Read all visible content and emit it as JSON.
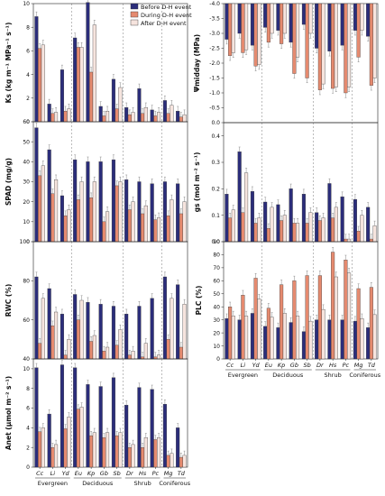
{
  "colors": {
    "before": "#2b2d7a",
    "during": "#e58a6f",
    "after": "#f6e4de",
    "error_bar": "#888888"
  },
  "legend": {
    "before": "Before D-H event",
    "during": "During D-H event",
    "after": "After D-H event"
  },
  "groups": [
    "Evergreen",
    "Deciduous",
    "Shrub",
    "Coniferous"
  ],
  "chart_data": [
    {
      "id": "ks",
      "type": "bar",
      "ylabel": "Ks (kg m⁻¹ MPa⁻¹ s⁻¹)",
      "ylim": [
        0,
        10
      ],
      "yticks": [
        0,
        2,
        4,
        6,
        8,
        10
      ],
      "categories": [
        "Cc",
        "Li",
        "Yd",
        "Eu",
        "Kp",
        "Gb",
        "Sb",
        "Dr",
        "Hs",
        "Pc",
        "Mg",
        "Td"
      ],
      "series": [
        {
          "name": "Before D-H event",
          "values": [
            8.9,
            1.5,
            4.4,
            7.1,
            10.1,
            1.3,
            3.6,
            1.2,
            2.8,
            1.0,
            1.8,
            0.9
          ]
        },
        {
          "name": "During D-H event",
          "values": [
            6.2,
            0.7,
            0.9,
            6.3,
            4.2,
            0.5,
            1.1,
            0.6,
            0.7,
            0.5,
            0.7,
            0.4
          ]
        },
        {
          "name": "After D-H event",
          "values": [
            6.5,
            0.8,
            1.1,
            6.3,
            8.2,
            0.9,
            2.9,
            0.8,
            1.2,
            0.8,
            1.4,
            0.6
          ]
        }
      ]
    },
    {
      "id": "psi",
      "type": "bar",
      "ylabel": "Ψmidday (MPa)",
      "ylim": [
        0,
        -4
      ],
      "yticks": [
        0,
        -0.5,
        -1.0,
        -1.5,
        -2.0,
        -2.5,
        -3.0,
        -3.5,
        -4.0
      ],
      "inverted": true,
      "categories": [
        "Cc",
        "Li",
        "Yd",
        "Eu",
        "Kp",
        "Gb",
        "Sb",
        "Dr",
        "Hs",
        "Pc",
        "Mg",
        "Td"
      ],
      "series": [
        {
          "name": "Before D-H event",
          "values": [
            -1.2,
            -1.0,
            -1.4,
            -0.8,
            -0.9,
            -1.3,
            -0.7,
            -1.5,
            -1.6,
            -1.4,
            -0.9,
            -1.1
          ]
        },
        {
          "name": "During D-H event",
          "values": [
            -1.75,
            -1.65,
            -2.1,
            -1.3,
            -1.35,
            -2.35,
            -2.5,
            -2.9,
            -2.85,
            -3.0,
            -1.8,
            -2.75
          ]
        },
        {
          "name": "After D-H event",
          "values": [
            -1.65,
            -1.55,
            -2.05,
            -1.0,
            -1.0,
            -1.8,
            -1.0,
            -2.7,
            -2.8,
            -2.8,
            -0.9,
            -2.5
          ]
        }
      ]
    },
    {
      "id": "spad",
      "type": "bar",
      "ylabel": "SPAD (mg/g)",
      "ylim": [
        0,
        60
      ],
      "yticks": [
        0,
        10,
        20,
        30,
        40,
        50,
        60
      ],
      "categories": [
        "Cc",
        "Li",
        "Yd",
        "Eu",
        "Kp",
        "Gb",
        "Sb",
        "Dr",
        "Hs",
        "Pc",
        "Mg",
        "Td"
      ],
      "series": [
        {
          "name": "Before D-H event",
          "values": [
            57,
            46,
            23,
            41,
            40,
            40,
            41,
            31,
            30,
            29,
            30,
            29
          ]
        },
        {
          "name": "During D-H event",
          "values": [
            33,
            24,
            13,
            21,
            22,
            10,
            28,
            16,
            14,
            11,
            13,
            14
          ]
        },
        {
          "name": "After D-H event",
          "values": [
            38,
            31,
            16,
            30,
            30,
            15,
            30,
            20,
            18,
            12,
            21,
            20
          ]
        }
      ]
    },
    {
      "id": "gs",
      "type": "bar",
      "ylabel": "gs (mol m⁻² s⁻¹)",
      "ylim": [
        0,
        0.45
      ],
      "yticks": [
        0,
        0.1,
        0.2,
        0.3,
        0.4
      ],
      "categories": [
        "Cc",
        "Li",
        "Yd",
        "Eu",
        "Kp",
        "Gb",
        "Sb",
        "Dr",
        "Hs",
        "Pc",
        "Mg",
        "Td"
      ],
      "series": [
        {
          "name": "Before D-H event",
          "values": [
            0.18,
            0.34,
            0.19,
            0.15,
            0.14,
            0.2,
            0.18,
            0.11,
            0.22,
            0.17,
            0.16,
            0.13
          ]
        },
        {
          "name": "During D-H event",
          "values": [
            0.09,
            0.11,
            0.07,
            0.05,
            0.08,
            0.07,
            0.07,
            0.08,
            0.09,
            0.01,
            0.04,
            0.01
          ]
        },
        {
          "name": "After D-H event",
          "values": [
            0.12,
            0.26,
            0.09,
            0.13,
            0.1,
            0.07,
            0.11,
            0.09,
            0.13,
            0.01,
            0.1,
            0.06
          ]
        }
      ]
    },
    {
      "id": "rwc",
      "type": "bar",
      "ylabel": "RWC (%)",
      "ylim": [
        40,
        100
      ],
      "yticks": [
        40,
        60,
        80,
        100
      ],
      "categories": [
        "Cc",
        "Li",
        "Yd",
        "Eu",
        "Kp",
        "Gb",
        "Sb",
        "Dr",
        "Hs",
        "Pc",
        "Mg",
        "Td"
      ],
      "series": [
        {
          "name": "Before D-H event",
          "values": [
            82,
            76,
            63,
            73,
            69,
            68,
            67,
            63,
            67,
            71,
            82,
            78
          ]
        },
        {
          "name": "During D-H event",
          "values": [
            48,
            57,
            42,
            60,
            49,
            44,
            47,
            42,
            41,
            41,
            50,
            46
          ]
        },
        {
          "name": "After D-H event",
          "values": [
            71,
            64,
            50,
            70,
            52,
            46,
            55,
            44,
            48,
            42,
            71,
            68
          ]
        }
      ]
    },
    {
      "id": "plc",
      "type": "bar",
      "ylabel": "PLC (%)",
      "ylim": [
        0,
        90
      ],
      "yticks": [
        0,
        10,
        20,
        30,
        40,
        50,
        60,
        70,
        80,
        90
      ],
      "categories": [
        "Cc",
        "Li",
        "Yd",
        "Eu",
        "Kp",
        "Gb",
        "Sb",
        "Dr",
        "Hs",
        "Pc",
        "Mg",
        "Td"
      ],
      "series": [
        {
          "name": "Before D-H event",
          "values": [
            31,
            30,
            35,
            25,
            24,
            28,
            21,
            30,
            30,
            30,
            29,
            24
          ]
        },
        {
          "name": "During D-H event",
          "values": [
            40,
            49,
            62,
            39,
            57,
            60,
            64,
            64,
            82,
            76,
            54,
            55
          ]
        },
        {
          "name": "After D-H event",
          "values": [
            33,
            33,
            46,
            32,
            35,
            33,
            29,
            38,
            63,
            66,
            31,
            34
          ]
        }
      ]
    },
    {
      "id": "anet",
      "type": "bar",
      "ylabel": "Anet (μmol m⁻² s⁻¹)",
      "ylim": [
        0,
        11
      ],
      "yticks": [
        0,
        2,
        4,
        6,
        8,
        10
      ],
      "categories": [
        "Cc",
        "Li",
        "Yd",
        "Eu",
        "Kp",
        "Gb",
        "Sb",
        "Dr",
        "Hs",
        "Pc",
        "Mg",
        "Td"
      ],
      "series": [
        {
          "name": "Before D-H event",
          "values": [
            10.1,
            5.4,
            10.4,
            10.1,
            8.4,
            8.2,
            9.1,
            6.3,
            8.1,
            7.9,
            6.4,
            4.0
          ]
        },
        {
          "name": "During D-H event",
          "values": [
            3.6,
            2.0,
            3.9,
            5.9,
            3.2,
            3.0,
            3.2,
            2.0,
            2.0,
            2.8,
            1.2,
            1.0
          ]
        },
        {
          "name": "After D-H event",
          "values": [
            4.0,
            2.3,
            5.1,
            6.1,
            3.5,
            3.5,
            3.5,
            2.3,
            3.0,
            3.0,
            1.4,
            1.2
          ]
        }
      ]
    }
  ]
}
